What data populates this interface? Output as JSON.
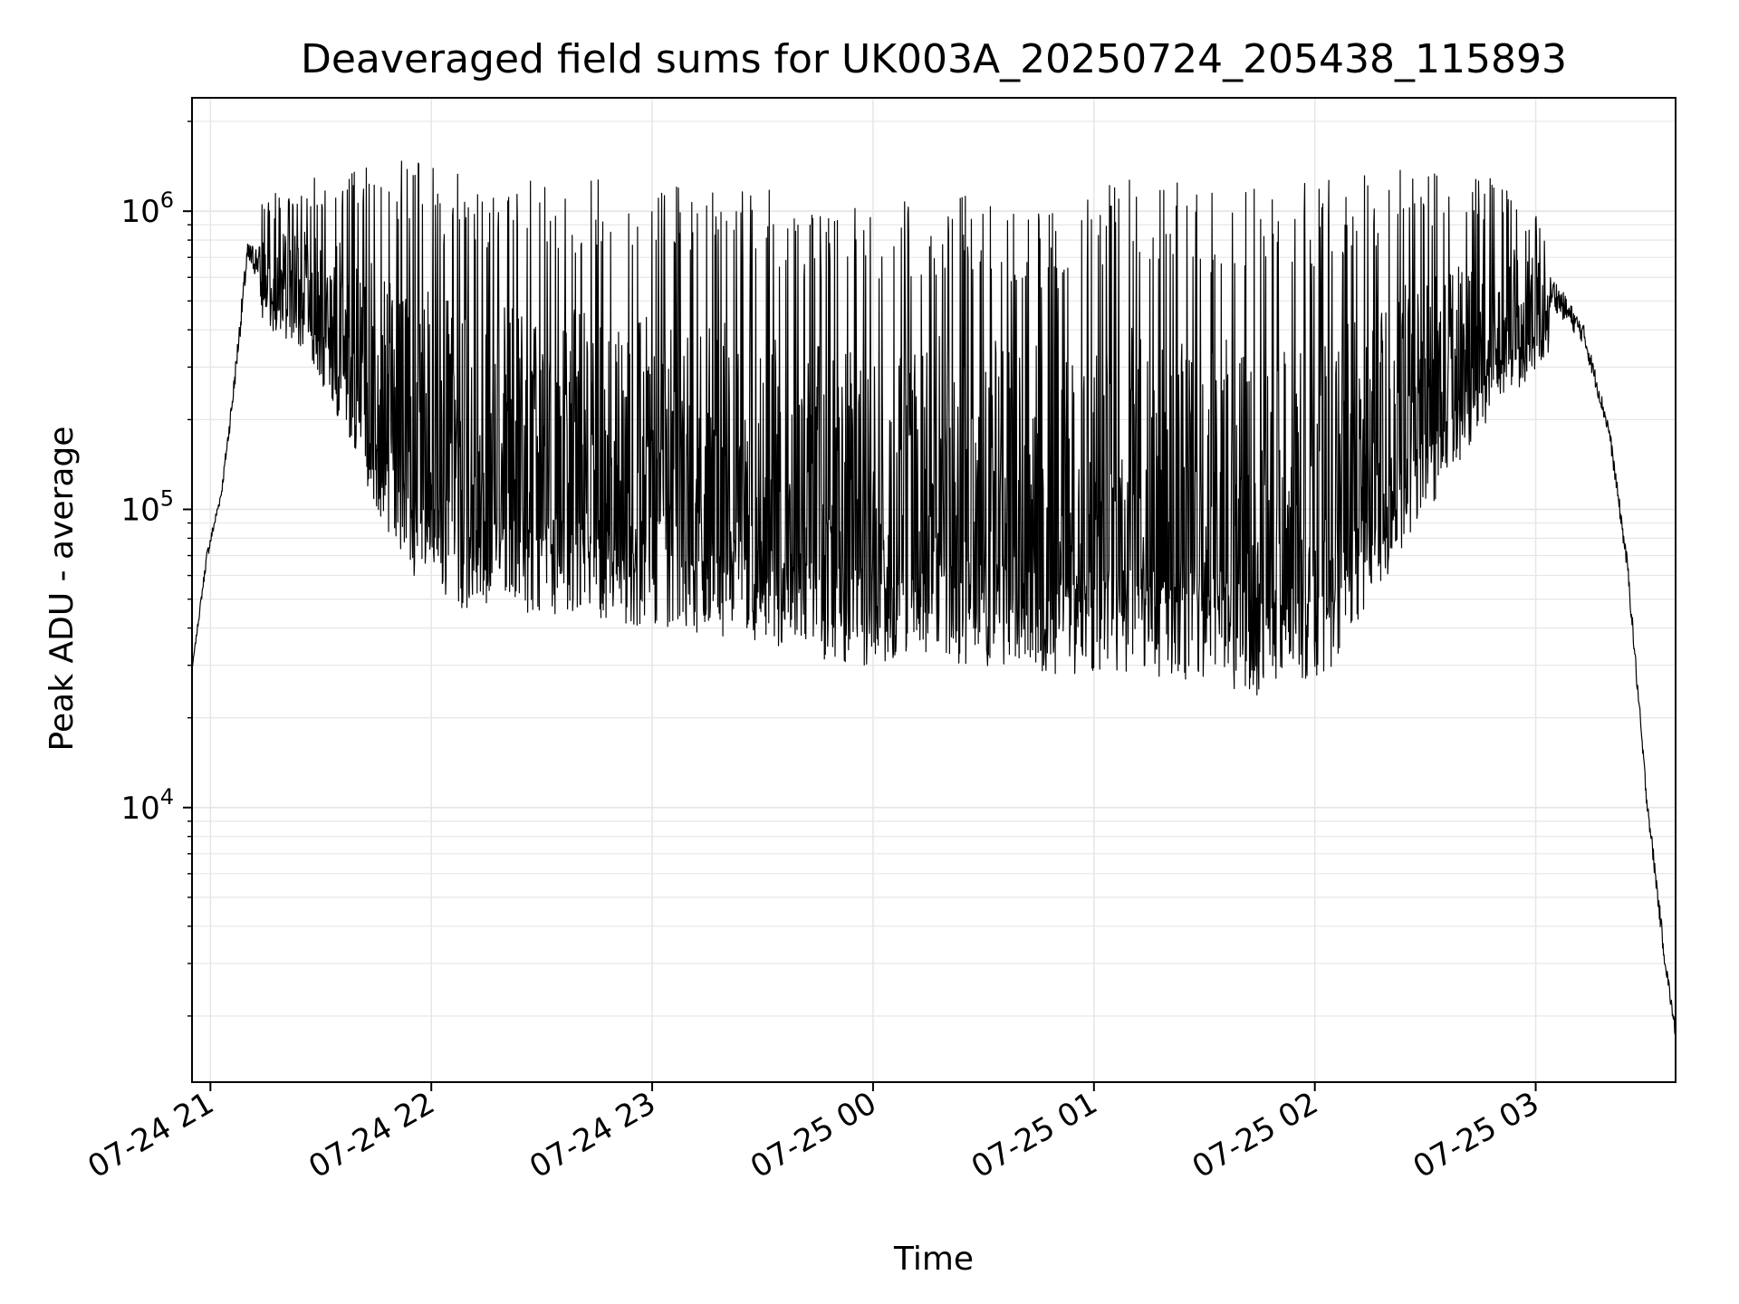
{
  "chart_data": {
    "type": "line",
    "title": "Deaveraged field sums for UK003A_20250724_205438_115893",
    "xlabel": "Time",
    "ylabel": "Peak ADU - average",
    "x_axis": {
      "kind": "time",
      "range": [
        "2025-07-24 20:55",
        "2025-07-25 03:38"
      ],
      "ticks": [
        {
          "value": "2025-07-24 21:00",
          "label": "07-24 21"
        },
        {
          "value": "2025-07-24 22:00",
          "label": "07-24 22"
        },
        {
          "value": "2025-07-24 23:00",
          "label": "07-24 23"
        },
        {
          "value": "2025-07-25 00:00",
          "label": "07-25 00"
        },
        {
          "value": "2025-07-25 01:00",
          "label": "07-25 01"
        },
        {
          "value": "2025-07-25 02:00",
          "label": "07-25 02"
        },
        {
          "value": "2025-07-25 03:00",
          "label": "07-25 03"
        }
      ]
    },
    "y_axis": {
      "scale": "log",
      "range": [
        1200,
        2400000
      ],
      "ticks": [
        {
          "value": 10000,
          "base": "10",
          "exp": "4"
        },
        {
          "value": 100000,
          "base": "10",
          "exp": "5"
        },
        {
          "value": 1000000,
          "base": "10",
          "exp": "6"
        }
      ]
    },
    "grid": true,
    "line_color": "#000000",
    "grid_color": "#e6e6e6",
    "series": [
      {
        "style": "dense-noisy-line",
        "envelope": [
          {
            "t": "2025-07-24 20:55",
            "low": 28000,
            "high": 30000
          },
          {
            "t": "2025-07-24 20:59",
            "low": 60000,
            "high": 80000
          },
          {
            "t": "2025-07-24 21:03",
            "low": 100000,
            "high": 130000
          },
          {
            "t": "2025-07-24 21:06",
            "low": 180000,
            "high": 300000
          },
          {
            "t": "2025-07-24 21:10",
            "low": 500000,
            "high": 1000000
          },
          {
            "t": "2025-07-24 21:15",
            "low": 400000,
            "high": 1100000
          },
          {
            "t": "2025-07-24 21:25",
            "low": 350000,
            "high": 1300000
          },
          {
            "t": "2025-07-24 21:35",
            "low": 200000,
            "high": 1450000
          },
          {
            "t": "2025-07-24 21:45",
            "low": 100000,
            "high": 1600000
          },
          {
            "t": "2025-07-24 21:55",
            "low": 60000,
            "high": 1500000
          },
          {
            "t": "2025-07-24 22:10",
            "low": 45000,
            "high": 1300000
          },
          {
            "t": "2025-07-24 22:30",
            "low": 45000,
            "high": 1300000
          },
          {
            "t": "2025-07-24 22:50",
            "low": 42000,
            "high": 1350000
          },
          {
            "t": "2025-07-24 23:10",
            "low": 38000,
            "high": 1300000
          },
          {
            "t": "2025-07-24 23:30",
            "low": 35000,
            "high": 1200000
          },
          {
            "t": "2025-07-24 23:50",
            "low": 30000,
            "high": 1000000
          },
          {
            "t": "2025-07-25 00:10",
            "low": 30000,
            "high": 1100000
          },
          {
            "t": "2025-07-25 00:30",
            "low": 30000,
            "high": 1200000
          },
          {
            "t": "2025-07-25 00:50",
            "low": 28000,
            "high": 1000000
          },
          {
            "t": "2025-07-25 01:10",
            "low": 28000,
            "high": 1400000
          },
          {
            "t": "2025-07-25 01:30",
            "low": 26000,
            "high": 1200000
          },
          {
            "t": "2025-07-25 01:50",
            "low": 23000,
            "high": 1200000
          },
          {
            "t": "2025-07-25 02:05",
            "low": 30000,
            "high": 1300000
          },
          {
            "t": "2025-07-25 02:20",
            "low": 60000,
            "high": 1400000
          },
          {
            "t": "2025-07-25 02:40",
            "low": 150000,
            "high": 1400000
          },
          {
            "t": "2025-07-25 02:55",
            "low": 250000,
            "high": 1200000
          },
          {
            "t": "2025-07-25 03:05",
            "low": 350000,
            "high": 800000
          },
          {
            "t": "2025-07-25 03:13",
            "low": 300000,
            "high": 500000
          },
          {
            "t": "2025-07-25 03:20",
            "low": 150000,
            "high": 220000
          },
          {
            "t": "2025-07-25 03:25",
            "low": 50000,
            "high": 80000
          },
          {
            "t": "2025-07-25 03:30",
            "low": 9000,
            "high": 14000
          },
          {
            "t": "2025-07-25 03:35",
            "low": 2500,
            "high": 4000
          },
          {
            "t": "2025-07-25 03:38",
            "low": 1500,
            "high": 2000
          }
        ]
      }
    ]
  }
}
